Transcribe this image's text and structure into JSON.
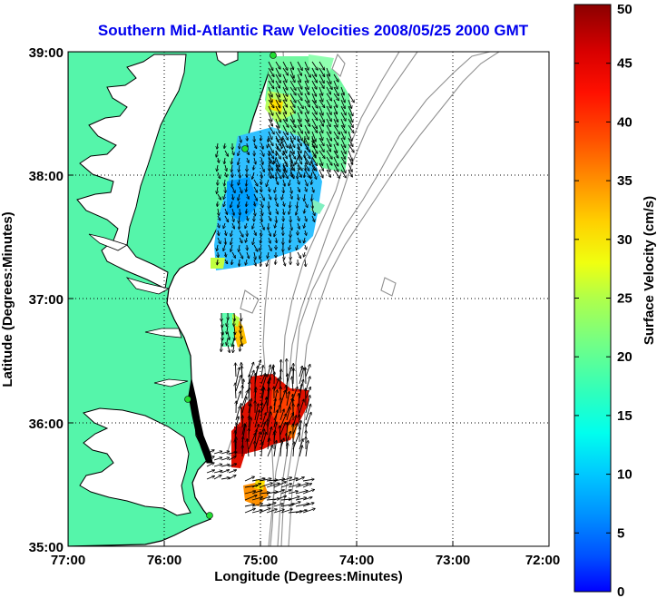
{
  "title": "Southern Mid-Atlantic Raw Velocities 2008/05/25 2000 GMT",
  "title_color": "#0000ee",
  "xlabel": "Longitude (Degrees:Minutes)",
  "ylabel": "Latitude (Degrees:Minutes)",
  "x_ticks": [
    "77:00",
    "76:00",
    "75:00",
    "74:00",
    "73:00",
    "72:00"
  ],
  "y_ticks": [
    "39:00",
    "38:00",
    "37:00",
    "36:00",
    "35:00"
  ],
  "colorbar": {
    "label": "Surface Velocity (cm/s)",
    "ticks": [
      "0",
      "5",
      "10",
      "15",
      "20",
      "25",
      "30",
      "35",
      "40",
      "45",
      "50"
    ],
    "range": [
      0,
      50
    ]
  },
  "colors": {
    "land": "#55f5aa",
    "coastline": "#000000",
    "bathymetry": "#909090",
    "station": "#22dd33"
  },
  "map_extent": {
    "lon": [
      -77,
      -72
    ],
    "lat": [
      35,
      39
    ]
  }
}
